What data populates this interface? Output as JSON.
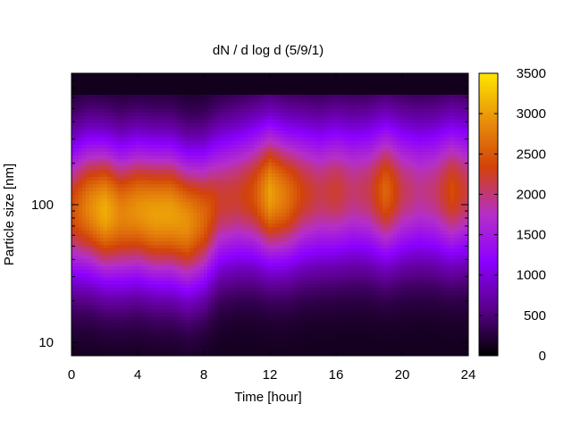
{
  "chart_data": {
    "type": "heatmap",
    "title": "dN / d log d (5/9/1)",
    "xlabel": "Time [hour]",
    "ylabel": "Particle size [nm]",
    "x_range": [
      0,
      24
    ],
    "x_ticks": [
      0,
      4,
      8,
      12,
      16,
      20,
      24
    ],
    "y_scale": "log",
    "y_range_nm": [
      8,
      900
    ],
    "y_tick_labels": [
      {
        "value": 10,
        "label": "10"
      },
      {
        "value": 100,
        "label": "100"
      }
    ],
    "colorbar": {
      "range": [
        0,
        3500
      ],
      "ticks": [
        0,
        500,
        1000,
        1500,
        2000,
        2500,
        3000,
        3500
      ],
      "colormap": [
        "#000000",
        "#5a008c",
        "#8c00ff",
        "#b52fc8",
        "#d2420a",
        "#e8900a",
        "#ffe600"
      ]
    },
    "mode_peak_by_hour": [
      {
        "time": 0,
        "peak_value": 2300,
        "peak_diameter_nm": 90
      },
      {
        "time": 1,
        "peak_value": 2700,
        "peak_diameter_nm": 95
      },
      {
        "time": 2,
        "peak_value": 3000,
        "peak_diameter_nm": 90
      },
      {
        "time": 3,
        "peak_value": 2700,
        "peak_diameter_nm": 85
      },
      {
        "time": 4,
        "peak_value": 2800,
        "peak_diameter_nm": 90
      },
      {
        "time": 5,
        "peak_value": 2900,
        "peak_diameter_nm": 85
      },
      {
        "time": 6,
        "peak_value": 2900,
        "peak_diameter_nm": 85
      },
      {
        "time": 7,
        "peak_value": 2800,
        "peak_diameter_nm": 75
      },
      {
        "time": 8,
        "peak_value": 2500,
        "peak_diameter_nm": 80
      },
      {
        "time": 9,
        "peak_value": 2100,
        "peak_diameter_nm": 105
      },
      {
        "time": 10,
        "peak_value": 2100,
        "peak_diameter_nm": 115
      },
      {
        "time": 11,
        "peak_value": 2300,
        "peak_diameter_nm": 120
      },
      {
        "time": 12,
        "peak_value": 2900,
        "peak_diameter_nm": 120
      },
      {
        "time": 13,
        "peak_value": 2600,
        "peak_diameter_nm": 115
      },
      {
        "time": 14,
        "peak_value": 2200,
        "peak_diameter_nm": 120
      },
      {
        "time": 15,
        "peak_value": 2000,
        "peak_diameter_nm": 120
      },
      {
        "time": 16,
        "peak_value": 2100,
        "peak_diameter_nm": 125
      },
      {
        "time": 17,
        "peak_value": 1900,
        "peak_diameter_nm": 125
      },
      {
        "time": 18,
        "peak_value": 2000,
        "peak_diameter_nm": 125
      },
      {
        "time": 19,
        "peak_value": 2500,
        "peak_diameter_nm": 125
      },
      {
        "time": 20,
        "peak_value": 2000,
        "peak_diameter_nm": 125
      },
      {
        "time": 21,
        "peak_value": 1800,
        "peak_diameter_nm": 125
      },
      {
        "time": 22,
        "peak_value": 1900,
        "peak_diameter_nm": 125
      },
      {
        "time": 23,
        "peak_value": 2300,
        "peak_diameter_nm": 125
      },
      {
        "time": 24,
        "peak_value": 2000,
        "peak_diameter_nm": 125
      }
    ]
  }
}
